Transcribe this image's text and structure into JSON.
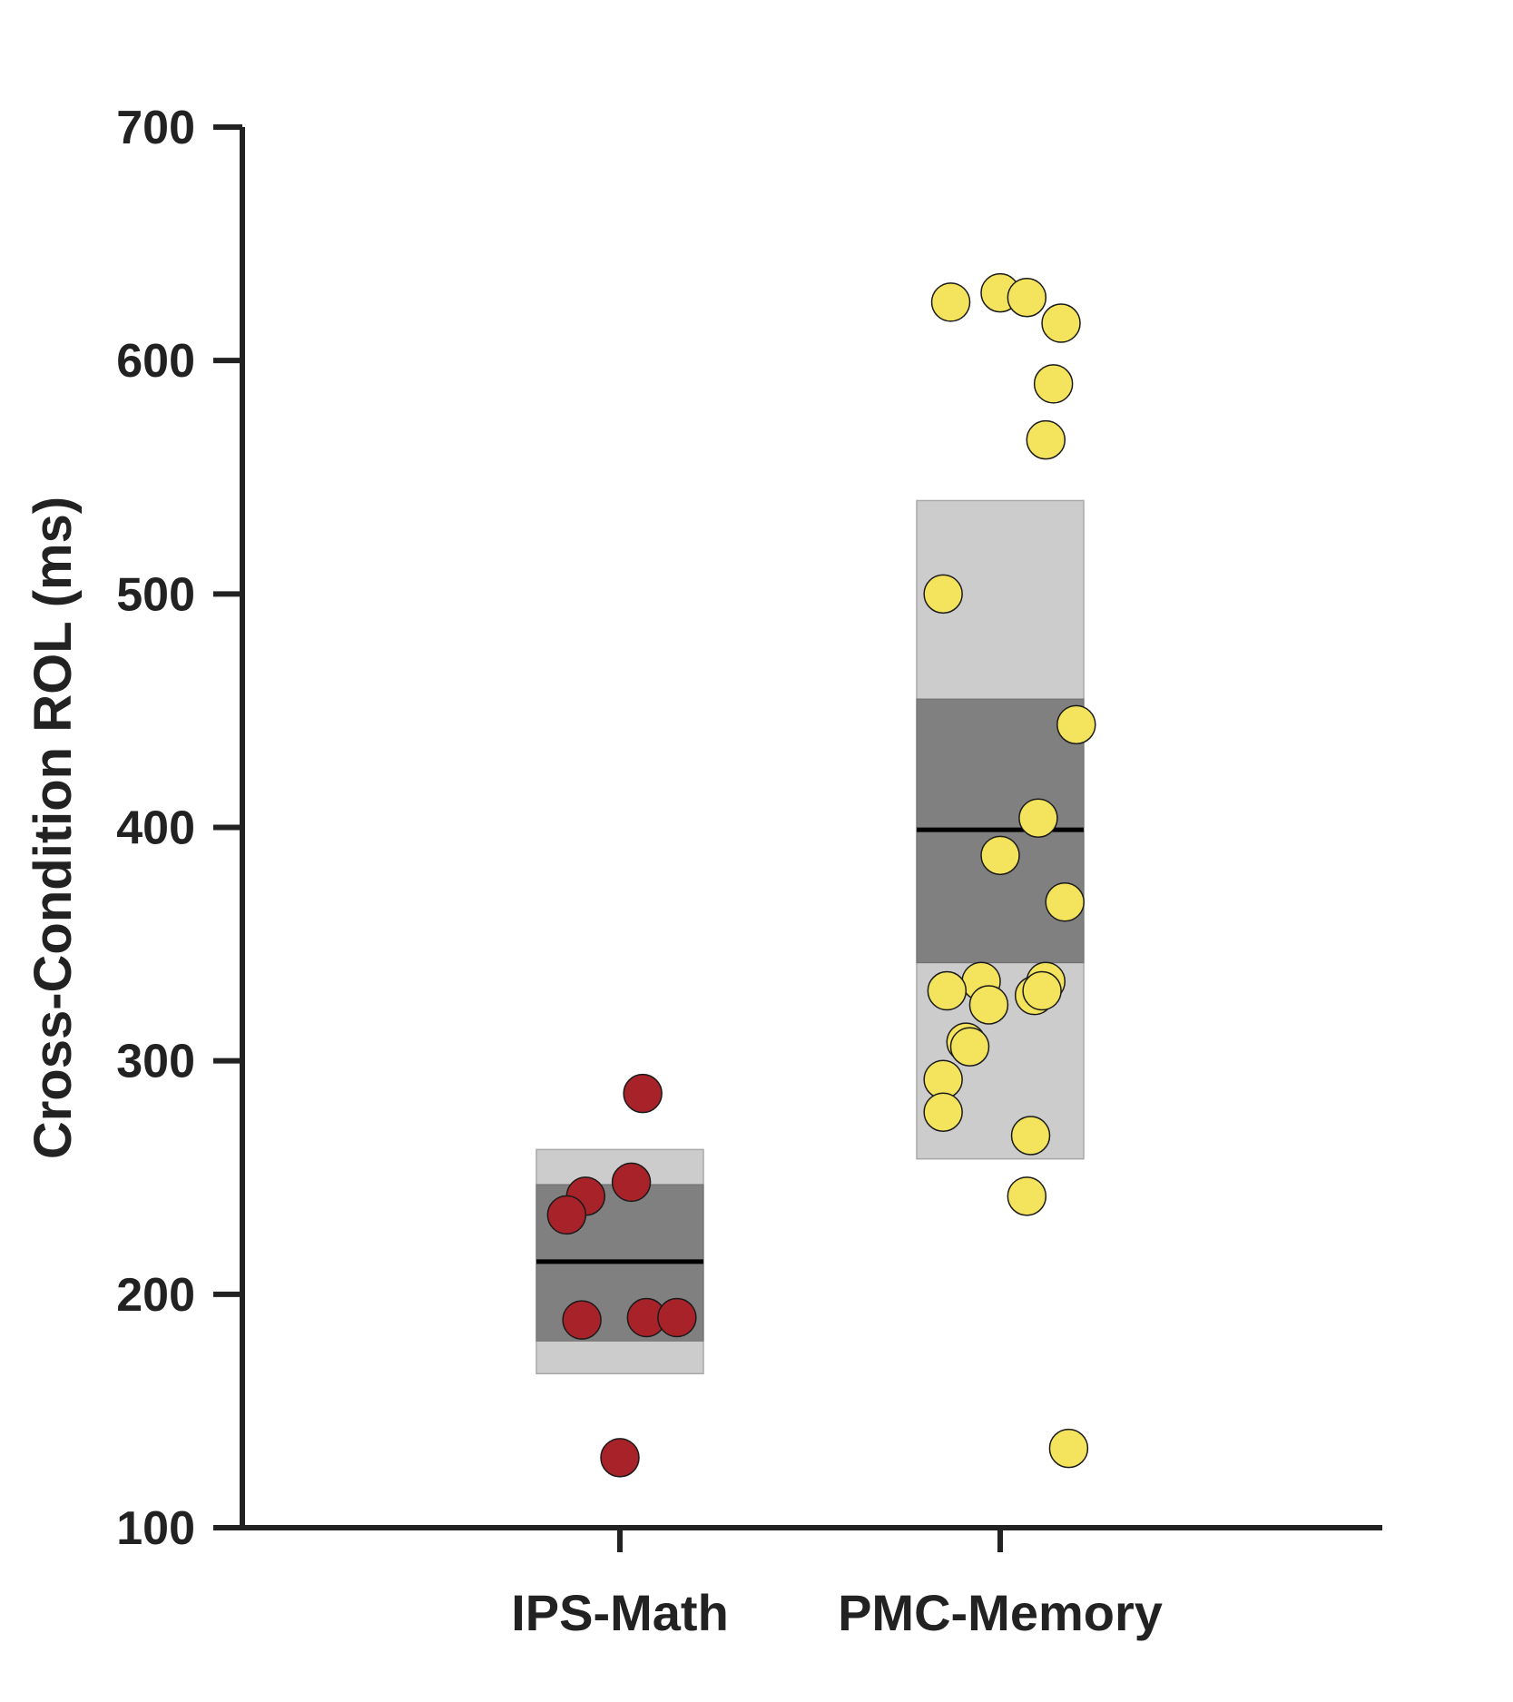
{
  "chart_data": {
    "type": "scatter",
    "ylabel": "Cross-Condition ROL (ms)",
    "xlabel": "",
    "ylim": [
      100,
      700
    ],
    "yticks": [
      100,
      200,
      300,
      400,
      500,
      600,
      700
    ],
    "categories": [
      "IPS-Math",
      "PMC-Memory"
    ],
    "grid": false,
    "colors": {
      "point_ips": "#a8222a",
      "point_pmc": "#f4e35d",
      "band_outer": "#cccccc",
      "band_inner": "#808080",
      "mean_line": "#000000",
      "axis": "#222222"
    },
    "series": [
      {
        "category": "IPS-Math",
        "mean": 214,
        "inner_band": [
          180,
          247
        ],
        "outer_band": [
          166,
          262
        ],
        "points": [
          {
            "dx": 0.06,
            "y": 286
          },
          {
            "dx": 0.03,
            "y": 248
          },
          {
            "dx": -0.09,
            "y": 242
          },
          {
            "dx": -0.14,
            "y": 234
          },
          {
            "dx": -0.1,
            "y": 189
          },
          {
            "dx": 0.07,
            "y": 190
          },
          {
            "dx": 0.15,
            "y": 190
          },
          {
            "dx": 0.0,
            "y": 130
          }
        ]
      },
      {
        "category": "PMC-Memory",
        "mean": 399,
        "inner_band": [
          342,
          455
        ],
        "outer_band": [
          258,
          540
        ],
        "points": [
          {
            "dx": -0.13,
            "y": 625
          },
          {
            "dx": 0.0,
            "y": 629
          },
          {
            "dx": 0.07,
            "y": 627
          },
          {
            "dx": 0.16,
            "y": 616
          },
          {
            "dx": 0.14,
            "y": 590
          },
          {
            "dx": 0.12,
            "y": 566
          },
          {
            "dx": -0.15,
            "y": 500
          },
          {
            "dx": 0.2,
            "y": 444
          },
          {
            "dx": 0.1,
            "y": 404
          },
          {
            "dx": 0.0,
            "y": 388
          },
          {
            "dx": 0.17,
            "y": 368
          },
          {
            "dx": -0.05,
            "y": 334
          },
          {
            "dx": 0.12,
            "y": 334
          },
          {
            "dx": -0.14,
            "y": 330
          },
          {
            "dx": 0.09,
            "y": 328
          },
          {
            "dx": 0.11,
            "y": 330
          },
          {
            "dx": -0.03,
            "y": 324
          },
          {
            "dx": -0.09,
            "y": 308
          },
          {
            "dx": -0.08,
            "y": 306
          },
          {
            "dx": -0.15,
            "y": 292
          },
          {
            "dx": -0.15,
            "y": 278
          },
          {
            "dx": 0.08,
            "y": 268
          },
          {
            "dx": 0.07,
            "y": 242
          },
          {
            "dx": 0.18,
            "y": 134
          }
        ]
      }
    ]
  }
}
